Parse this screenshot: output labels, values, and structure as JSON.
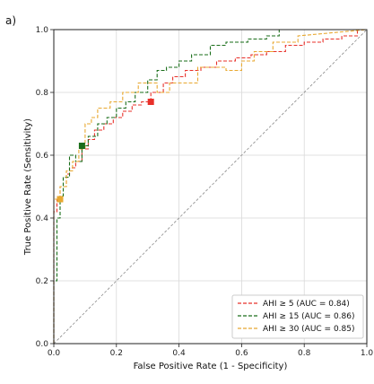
{
  "chart_data": {
    "type": "line",
    "panel_label": "a)",
    "xlabel": "False Positive Rate (1 - Specificity)",
    "ylabel": "True Positive Rate (Sensitivity)",
    "xlim": [
      0.0,
      1.0
    ],
    "ylim": [
      0.0,
      1.0
    ],
    "xticks": [
      "0.0",
      "0.2",
      "0.4",
      "0.6",
      "0.8",
      "1.0"
    ],
    "yticks": [
      "0.0",
      "0.2",
      "0.4",
      "0.6",
      "0.8",
      "1.0"
    ],
    "grid": true,
    "legend_position": "bottom-right",
    "reference_line": {
      "x": [
        0,
        1
      ],
      "y": [
        0,
        1
      ],
      "color": "#8a8a8a"
    },
    "series": [
      {
        "name": "AHI ≥  5 (AUC = 0.84)",
        "color": "#e8302a",
        "x": [
          0,
          0,
          0.01,
          0.01,
          0.02,
          0.02,
          0.04,
          0.04,
          0.05,
          0.05,
          0.07,
          0.07,
          0.09,
          0.09,
          0.11,
          0.11,
          0.13,
          0.13,
          0.16,
          0.16,
          0.19,
          0.19,
          0.22,
          0.22,
          0.25,
          0.25,
          0.28,
          0.28,
          0.31,
          0.31,
          0.35,
          0.35,
          0.38,
          0.38,
          0.42,
          0.42,
          0.47,
          0.47,
          0.52,
          0.52,
          0.58,
          0.58,
          0.63,
          0.63,
          0.68,
          0.68,
          0.74,
          0.74,
          0.8,
          0.8,
          0.86,
          0.86,
          0.92,
          0.92,
          0.97,
          0.97,
          1.0
        ],
        "y": [
          0,
          0.42,
          0.42,
          0.46,
          0.46,
          0.5,
          0.5,
          0.54,
          0.54,
          0.56,
          0.56,
          0.58,
          0.58,
          0.62,
          0.62,
          0.65,
          0.65,
          0.68,
          0.68,
          0.7,
          0.7,
          0.72,
          0.72,
          0.74,
          0.74,
          0.76,
          0.76,
          0.77,
          0.77,
          0.8,
          0.8,
          0.83,
          0.83,
          0.85,
          0.85,
          0.87,
          0.87,
          0.88,
          0.88,
          0.9,
          0.9,
          0.91,
          0.91,
          0.92,
          0.92,
          0.93,
          0.93,
          0.95,
          0.95,
          0.96,
          0.96,
          0.97,
          0.97,
          0.98,
          0.98,
          1.0,
          1.0
        ]
      },
      {
        "name": "AHI ≥ 15 (AUC =  0.86)",
        "color": "#1a6e1a",
        "x": [
          0,
          0,
          0.01,
          0.01,
          0.02,
          0.02,
          0.03,
          0.03,
          0.05,
          0.05,
          0.07,
          0.07,
          0.09,
          0.09,
          0.11,
          0.11,
          0.14,
          0.14,
          0.17,
          0.17,
          0.2,
          0.2,
          0.23,
          0.23,
          0.26,
          0.26,
          0.3,
          0.3,
          0.33,
          0.33,
          0.36,
          0.36,
          0.4,
          0.4,
          0.44,
          0.44,
          0.5,
          0.5,
          0.55,
          0.55,
          0.62,
          0.62,
          0.68,
          0.68,
          0.72,
          0.72,
          0.77,
          0.77,
          1.0
        ],
        "y": [
          0,
          0.2,
          0.2,
          0.4,
          0.4,
          0.47,
          0.47,
          0.53,
          0.53,
          0.6,
          0.6,
          0.58,
          0.58,
          0.63,
          0.63,
          0.66,
          0.66,
          0.7,
          0.7,
          0.72,
          0.72,
          0.75,
          0.75,
          0.77,
          0.77,
          0.8,
          0.8,
          0.84,
          0.84,
          0.87,
          0.87,
          0.88,
          0.88,
          0.9,
          0.9,
          0.92,
          0.92,
          0.95,
          0.95,
          0.96,
          0.96,
          0.97,
          0.97,
          0.98,
          0.98,
          1.0,
          1.0,
          1.0,
          1.0
        ]
      },
      {
        "name": "AHI ≥ 30 (AUC =  0.85)",
        "color": "#e8a830",
        "x": [
          0,
          0,
          0.02,
          0.02,
          0.04,
          0.04,
          0.06,
          0.06,
          0.08,
          0.08,
          0.1,
          0.1,
          0.12,
          0.12,
          0.14,
          0.14,
          0.18,
          0.18,
          0.22,
          0.22,
          0.27,
          0.27,
          0.33,
          0.33,
          0.37,
          0.37,
          0.46,
          0.46,
          0.55,
          0.55,
          0.6,
          0.6,
          0.64,
          0.64,
          0.7,
          0.7,
          0.78,
          0.78,
          1.0
        ],
        "y": [
          0,
          0.46,
          0.46,
          0.5,
          0.5,
          0.55,
          0.55,
          0.58,
          0.58,
          0.62,
          0.62,
          0.7,
          0.7,
          0.72,
          0.72,
          0.75,
          0.75,
          0.77,
          0.77,
          0.8,
          0.8,
          0.83,
          0.83,
          0.8,
          0.8,
          0.83,
          0.83,
          0.88,
          0.88,
          0.87,
          0.87,
          0.9,
          0.9,
          0.93,
          0.93,
          0.96,
          0.96,
          0.98,
          1.0
        ]
      }
    ],
    "operating_points": [
      {
        "series": "AHI ≥  5 (AUC = 0.84)",
        "x": 0.31,
        "y": 0.77,
        "color": "#e8302a"
      },
      {
        "series": "AHI ≥ 15 (AUC =  0.86)",
        "x": 0.09,
        "y": 0.63,
        "color": "#1a6e1a"
      },
      {
        "series": "AHI ≥ 30 (AUC =  0.85)",
        "x": 0.02,
        "y": 0.46,
        "color": "#e8a830"
      }
    ]
  }
}
